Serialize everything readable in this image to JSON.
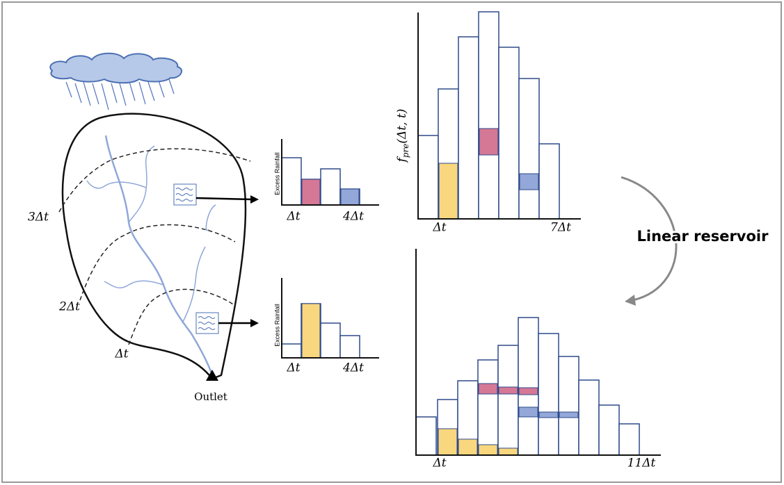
{
  "catchment": {
    "isochrones": [
      "3Δt",
      "2Δt",
      "Δt"
    ],
    "outlet": "Outlet"
  },
  "excess_rainfall_charts": [
    {
      "y_label": "Excess Rainfall",
      "x_labels": [
        "Δt",
        "4Δt"
      ]
    },
    {
      "y_label": "Excess Rainfall",
      "x_labels": [
        "Δt",
        "4Δt"
      ]
    }
  ],
  "upper_chart": {
    "y_label": {
      "main": "f",
      "sub": "pre",
      "args": "(Δt, t)"
    },
    "x_labels": [
      "Δt",
      "7Δt"
    ]
  },
  "transform_label": "Linear reservoir",
  "lower_chart": {
    "x_labels": [
      "Δt",
      "11Δt"
    ]
  }
}
